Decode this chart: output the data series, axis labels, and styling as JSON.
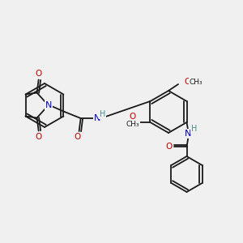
{
  "background_color": "#f0f0f0",
  "bond_color": "#1a1a1a",
  "atom_colors": {
    "O": "#cc0000",
    "N": "#0000cc",
    "H": "#4a8f8f",
    "C": "#1a1a1a"
  },
  "figsize": [
    3.0,
    3.0
  ],
  "dpi": 100,
  "lw": 1.3
}
